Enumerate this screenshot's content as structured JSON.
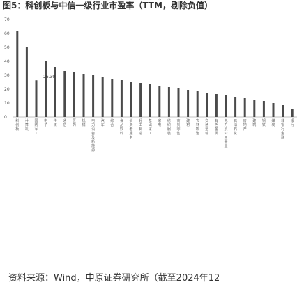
{
  "figure": {
    "title": "图5：科创板与中信一级行业市盈率（TTM，剔除负值）",
    "source": "资料来源：Wind，中原证券研究所（截至2024年12"
  },
  "chart_data": {
    "type": "bar",
    "title": "",
    "xlabel": "",
    "ylabel": "",
    "ylim": [
      0,
      70
    ],
    "yticks": [
      0,
      10,
      20,
      30,
      40,
      50,
      60,
      70
    ],
    "grid": false,
    "legend": "none",
    "bar_color": "#4a4a4a",
    "categories": [
      "科创板",
      "计算机",
      "国防军工",
      "电子",
      "传媒",
      "通信",
      "医药",
      "机械",
      "电力设备及新能源",
      "汽车",
      "综合",
      "食品饮料",
      "消费者服务",
      "轻工制造",
      "基础化工",
      "家电",
      "纺织服装",
      "商贸零售",
      "建材",
      "农林牧渔",
      "交通运输",
      "有色金属",
      "电力及公用事业",
      "石油石化",
      "房地产",
      "建筑",
      "钢铁",
      "煤炭",
      "非银行金融",
      "银行"
    ],
    "values": [
      61.5,
      50,
      26.39,
      40,
      36,
      33,
      32,
      31,
      30,
      28.5,
      27,
      26.5,
      25,
      24.5,
      23.5,
      22.5,
      21.5,
      20.5,
      19.5,
      18.5,
      17.5,
      16.5,
      15.5,
      14.5,
      13.5,
      12.5,
      11.5,
      10,
      8.5,
      6
    ],
    "annotations": [
      {
        "category_index": 2,
        "text": "26.39"
      }
    ]
  }
}
